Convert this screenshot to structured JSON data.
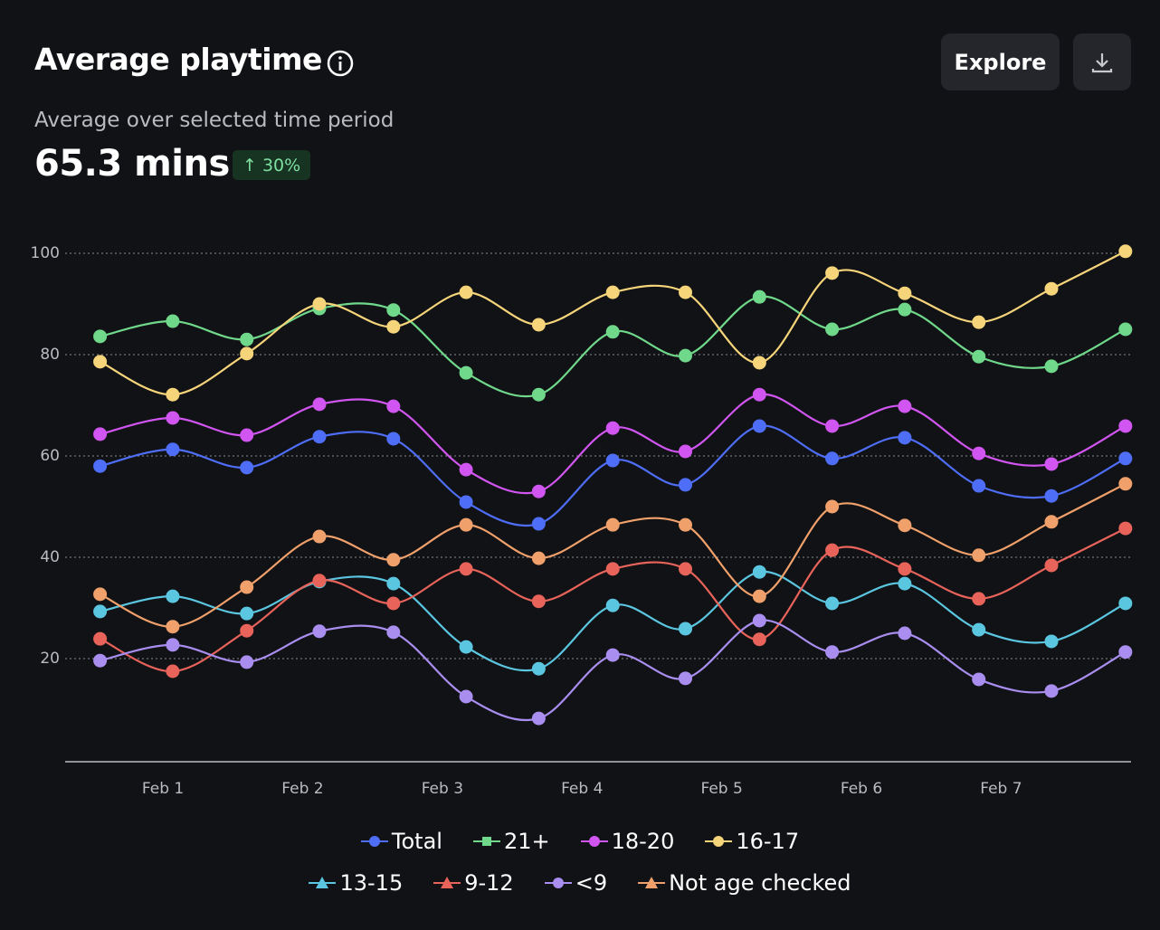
{
  "header": {
    "title": "Average playtime",
    "explore_button": "Explore",
    "subtitle": "Average over selected time period",
    "metric": "65.3 mins",
    "change": "↑ 30%"
  },
  "chart_data": {
    "type": "line",
    "x": [
      0.55,
      1.07,
      1.6,
      2.12,
      2.65,
      3.17,
      3.69,
      4.22,
      4.74,
      5.27,
      5.79,
      6.31,
      6.84,
      7.36,
      7.89
    ],
    "xlim": [
      0.3,
      7.93
    ],
    "xticks": [
      {
        "value": 1,
        "label": "Feb 1"
      },
      {
        "value": 2,
        "label": "Feb 2"
      },
      {
        "value": 3,
        "label": "Feb 3"
      },
      {
        "value": 4,
        "label": "Feb 4"
      },
      {
        "value": 5,
        "label": "Feb 5"
      },
      {
        "value": 6,
        "label": "Feb 6"
      },
      {
        "value": 7,
        "label": "Feb 7"
      }
    ],
    "ylim": [
      0,
      100
    ],
    "yticks": [
      20,
      40,
      60,
      80,
      100
    ],
    "grid": true,
    "smooth": true,
    "series": [
      {
        "name": "Total",
        "color": "#4f6ef7",
        "legend_marker": "circle",
        "values": [
          58,
          61.3,
          57.7,
          63.8,
          63.4,
          50.9,
          46.6,
          59.1,
          54.3,
          65.9,
          59.5,
          63.6,
          54.1,
          52.1,
          59.5
        ]
      },
      {
        "name": "21+",
        "color": "#6fd88a",
        "legend_marker": "square",
        "values": [
          83.6,
          86.6,
          83,
          89.1,
          88.8,
          76.4,
          72.1,
          84.5,
          79.8,
          91.4,
          85,
          88.9,
          79.6,
          77.7,
          85
        ]
      },
      {
        "name": "18-20",
        "color": "#d155f0",
        "legend_marker": "circle",
        "values": [
          64.3,
          67.5,
          64.1,
          70.2,
          69.8,
          57.3,
          53,
          65.5,
          60.9,
          72.1,
          65.9,
          69.8,
          60.5,
          58.4,
          65.9
        ]
      },
      {
        "name": "16-17",
        "color": "#f5d47a",
        "legend_marker": "circle",
        "values": [
          78.6,
          72.1,
          80.2,
          90,
          85.5,
          92.3,
          85.9,
          92.3,
          92.3,
          78.4,
          96.1,
          92.1,
          86.4,
          93,
          100.4
        ]
      },
      {
        "name": "13-15",
        "color": "#5bc6e0",
        "legend_marker": "triangle",
        "values": [
          29.3,
          32.3,
          28.9,
          35.2,
          34.8,
          22.3,
          18,
          30.5,
          25.9,
          37.1,
          30.9,
          34.8,
          25.7,
          23.4,
          30.9
        ]
      },
      {
        "name": "9-12",
        "color": "#e8635a",
        "legend_marker": "triangle",
        "values": [
          23.9,
          17.5,
          25.5,
          35.4,
          30.9,
          37.7,
          31.3,
          37.7,
          37.7,
          23.8,
          41.4,
          37.7,
          31.8,
          38.4,
          45.7
        ]
      },
      {
        "name": "<9",
        "color": "#a98ef0",
        "legend_marker": "circle",
        "values": [
          19.6,
          22.7,
          19.3,
          25.4,
          25.2,
          12.5,
          8.2,
          20.7,
          16.1,
          27.5,
          21.3,
          25,
          15.9,
          13.6,
          21.3
        ]
      },
      {
        "name": "Not age checked",
        "color": "#f0a06a",
        "legend_marker": "triangle",
        "values": [
          32.7,
          26.3,
          34.1,
          44.1,
          39.5,
          46.4,
          39.8,
          46.4,
          46.4,
          32.3,
          50,
          46.3,
          40.4,
          47,
          54.5
        ]
      }
    ]
  }
}
